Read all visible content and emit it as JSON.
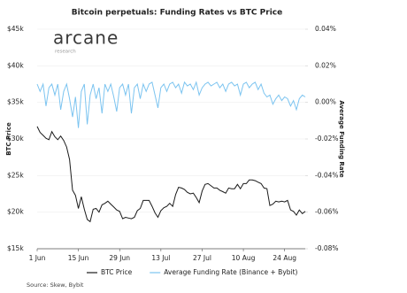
{
  "chart_data": {
    "type": "line",
    "title": "Bitcoin perpetuals: Funding Rates vs BTC Price",
    "logo": {
      "name": "arcane",
      "tagline": "research"
    },
    "y_label": "BTC Price",
    "y2_label": "Average Funding Rate",
    "source": "Source: Skew, Bybit",
    "categories": [
      "1 Jun",
      null,
      null,
      null,
      null,
      null,
      null,
      null,
      null,
      null,
      null,
      null,
      null,
      null,
      "15 Jun",
      null,
      null,
      null,
      null,
      null,
      null,
      null,
      null,
      null,
      null,
      null,
      null,
      null,
      "29 Jun",
      null,
      null,
      null,
      null,
      null,
      null,
      null,
      null,
      null,
      null,
      null,
      null,
      null,
      "13 Jul",
      null,
      null,
      null,
      null,
      null,
      null,
      null,
      null,
      null,
      null,
      null,
      null,
      null,
      "27 Jul",
      null,
      null,
      null,
      null,
      null,
      null,
      null,
      null,
      null,
      null,
      null,
      null,
      null,
      "10 Aug",
      null,
      null,
      null,
      null,
      null,
      null,
      null,
      null,
      null,
      null,
      null,
      null,
      null,
      "24 Aug",
      null,
      null,
      null,
      null,
      null,
      null,
      null
    ],
    "series": [
      {
        "name": "BTC Price",
        "color": "#1a1a1a",
        "axis": "y",
        "values": [
          31700,
          30900,
          30500,
          30100,
          29900,
          31000,
          30300,
          29900,
          30400,
          29800,
          28900,
          27200,
          23000,
          22300,
          20500,
          22100,
          20400,
          19000,
          18700,
          20400,
          20500,
          20000,
          21000,
          21200,
          21500,
          21100,
          20700,
          20300,
          20100,
          19100,
          19300,
          19200,
          19100,
          19300,
          20200,
          20500,
          21600,
          21600,
          21600,
          20800,
          19900,
          19300,
          20200,
          20600,
          20800,
          21200,
          20800,
          22400,
          23400,
          23300,
          23100,
          22700,
          22500,
          22600,
          22000,
          21300,
          22900,
          23800,
          23900,
          23600,
          23300,
          23300,
          23000,
          22800,
          22600,
          23300,
          23200,
          23200,
          23800,
          23200,
          23900,
          23900,
          24400,
          24400,
          24300,
          24100,
          23900,
          23300,
          23200,
          20900,
          21100,
          21500,
          21400,
          21500,
          21400,
          21600,
          20300,
          20100,
          19600,
          20300,
          19800,
          20100
        ]
      },
      {
        "name": "Average Funding Rate (Binance + Bybit)",
        "color": "#7cc4f0",
        "axis": "y2",
        "values": [
          0.01,
          0.006,
          0.01,
          -0.002,
          0.008,
          0.01,
          0.004,
          0.01,
          -0.004,
          0.006,
          0.01,
          0.002,
          -0.008,
          0.003,
          -0.014,
          0.006,
          0.01,
          -0.012,
          0.004,
          0.01,
          0.002,
          0.008,
          -0.006,
          0.01,
          0.006,
          0.01,
          0.003,
          -0.005,
          0.008,
          0.01,
          0.004,
          0.01,
          -0.006,
          0.008,
          0.01,
          0.002,
          0.01,
          0.006,
          0.01,
          0.011,
          0.004,
          -0.003,
          0.008,
          0.01,
          0.006,
          0.01,
          0.011,
          0.008,
          0.01,
          0.005,
          0.011,
          0.009,
          0.01,
          0.007,
          0.011,
          0.004,
          0.008,
          0.01,
          0.011,
          0.009,
          0.01,
          0.011,
          0.008,
          0.01,
          0.006,
          0.01,
          0.011,
          0.009,
          0.01,
          0.004,
          0.01,
          0.011,
          0.008,
          0.01,
          0.011,
          0.007,
          0.01,
          0.005,
          0.003,
          0.004,
          -0.001,
          0.002,
          0.004,
          0.001,
          0.003,
          0.002,
          -0.002,
          0.001,
          -0.004,
          0.002,
          0.004,
          0.003
        ]
      }
    ],
    "ylim": [
      15000,
      45000
    ],
    "yticks": [
      {
        "value": 15000,
        "label": "$15k"
      },
      {
        "value": 20000,
        "label": "$20k"
      },
      {
        "value": 25000,
        "label": "$25k"
      },
      {
        "value": 30000,
        "label": "$30k"
      },
      {
        "value": 35000,
        "label": "$35k"
      },
      {
        "value": 40000,
        "label": "$40k"
      },
      {
        "value": 45000,
        "label": "$45k"
      }
    ],
    "y2lim": [
      -0.08,
      0.04
    ],
    "y2ticks": [
      {
        "value": -0.08,
        "label": "-0.08%"
      },
      {
        "value": -0.06,
        "label": "-0.06%"
      },
      {
        "value": -0.04,
        "label": "-0.04%"
      },
      {
        "value": -0.02,
        "label": "-0.02%"
      },
      {
        "value": 0,
        "label": "0.00%"
      },
      {
        "value": 0.02,
        "label": "0.02%"
      },
      {
        "value": 0.04,
        "label": "0.04%"
      }
    ],
    "grid": true,
    "legend": "bottom"
  }
}
